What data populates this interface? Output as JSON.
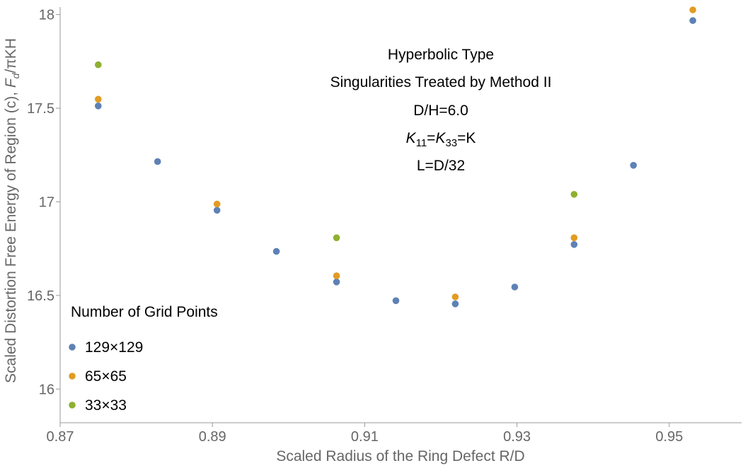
{
  "chart_data": {
    "type": "scatter",
    "xlabel": "Scaled Radius of the Ring Defect R/D",
    "ylabel": {
      "prefix": "Scaled Distortion Free Energy of Region (c), ",
      "F": "F",
      "sub": "d",
      "suffix": "/πKH"
    },
    "xlim": [
      0.87,
      0.9595
    ],
    "ylim": [
      15.82,
      18.04
    ],
    "x_ticks": [
      {
        "value": 0.87,
        "label": "0.87"
      },
      {
        "value": 0.89,
        "label": "0.89"
      },
      {
        "value": 0.91,
        "label": "0.91"
      },
      {
        "value": 0.93,
        "label": "0.93"
      },
      {
        "value": 0.95,
        "label": "0.95"
      }
    ],
    "y_ticks": [
      {
        "value": 16,
        "label": "16"
      },
      {
        "value": 16.5,
        "label": "16.5"
      },
      {
        "value": 17,
        "label": "17"
      },
      {
        "value": 17.5,
        "label": "17.5"
      },
      {
        "value": 18,
        "label": "18"
      }
    ],
    "annotations": {
      "line1": "Hyperbolic Type",
      "line2": "Singularities Treated by Method II",
      "line3": "D/H=6.0",
      "line4": {
        "k1": "K",
        "k1sub": "11",
        "eq1": "=",
        "k2": "K",
        "k2sub": "33",
        "eq2": "=K"
      },
      "line5": "L=D/32"
    },
    "legend": {
      "title": "Number of Grid Points",
      "placement": "bottom-left"
    },
    "series": [
      {
        "name": "129×129",
        "color": "#5E81B5",
        "points": [
          [
            0.875,
            17.512
          ],
          [
            0.8828,
            17.215
          ],
          [
            0.8906,
            16.955
          ],
          [
            0.8984,
            16.735
          ],
          [
            0.9063,
            16.572
          ],
          [
            0.9141,
            16.472
          ],
          [
            0.9219,
            16.455
          ],
          [
            0.9297,
            16.545
          ],
          [
            0.9375,
            16.772
          ],
          [
            0.9453,
            17.195
          ],
          [
            0.9531,
            17.968
          ]
        ]
      },
      {
        "name": "65×65",
        "color": "#E19C24",
        "points": [
          [
            0.875,
            17.548
          ],
          [
            0.8906,
            16.988
          ],
          [
            0.9063,
            16.605
          ],
          [
            0.9219,
            16.492
          ],
          [
            0.9375,
            16.808
          ],
          [
            0.9531,
            18.025
          ]
        ]
      },
      {
        "name": "33×33",
        "color": "#8FB032",
        "points": [
          [
            0.875,
            17.732
          ],
          [
            0.9063,
            16.808
          ],
          [
            0.9375,
            17.04
          ]
        ]
      }
    ]
  }
}
